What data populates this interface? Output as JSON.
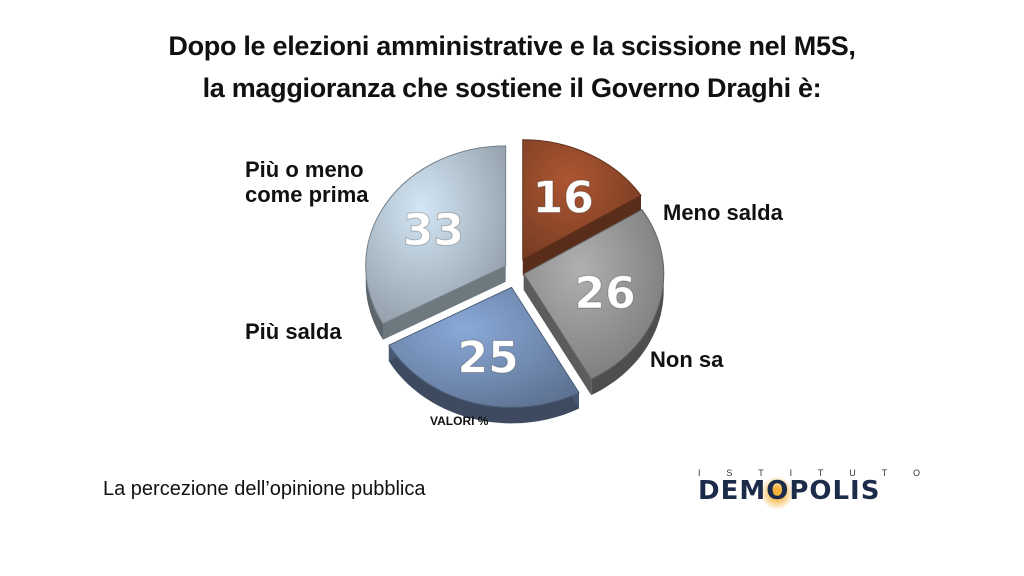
{
  "title_line1": "Dopo le elezioni amministrative e la scissione nel M5S,",
  "title_line2": "la maggioranza che sostiene il Governo Draghi è:",
  "note": "VALORI %",
  "subtitle": "La percezione dell’opinione pubblica",
  "logo": {
    "top": "ISTITUTO",
    "main_pre": "DEM",
    "main_o": "O",
    "main_post": "POLIS"
  },
  "labels": {
    "piu_meno_1": "Più o meno",
    "piu_meno_2": "come prima",
    "meno_salda": "Meno salda",
    "non_sa": "Non sa",
    "piu_salda": "Più salda"
  },
  "colors": {
    "piu_meno": "#a9b8c4",
    "meno_salda": "#8a4528",
    "non_sa": "#8d8d8d",
    "piu_salda": "#6e87ad"
  },
  "chart_data": {
    "type": "pie",
    "categories": [
      "Meno salda",
      "Non sa",
      "Più salda",
      "Più o meno come prima"
    ],
    "values": [
      16,
      26,
      25,
      33
    ],
    "unit": "%",
    "note": "VALORI %",
    "exploded": true
  }
}
